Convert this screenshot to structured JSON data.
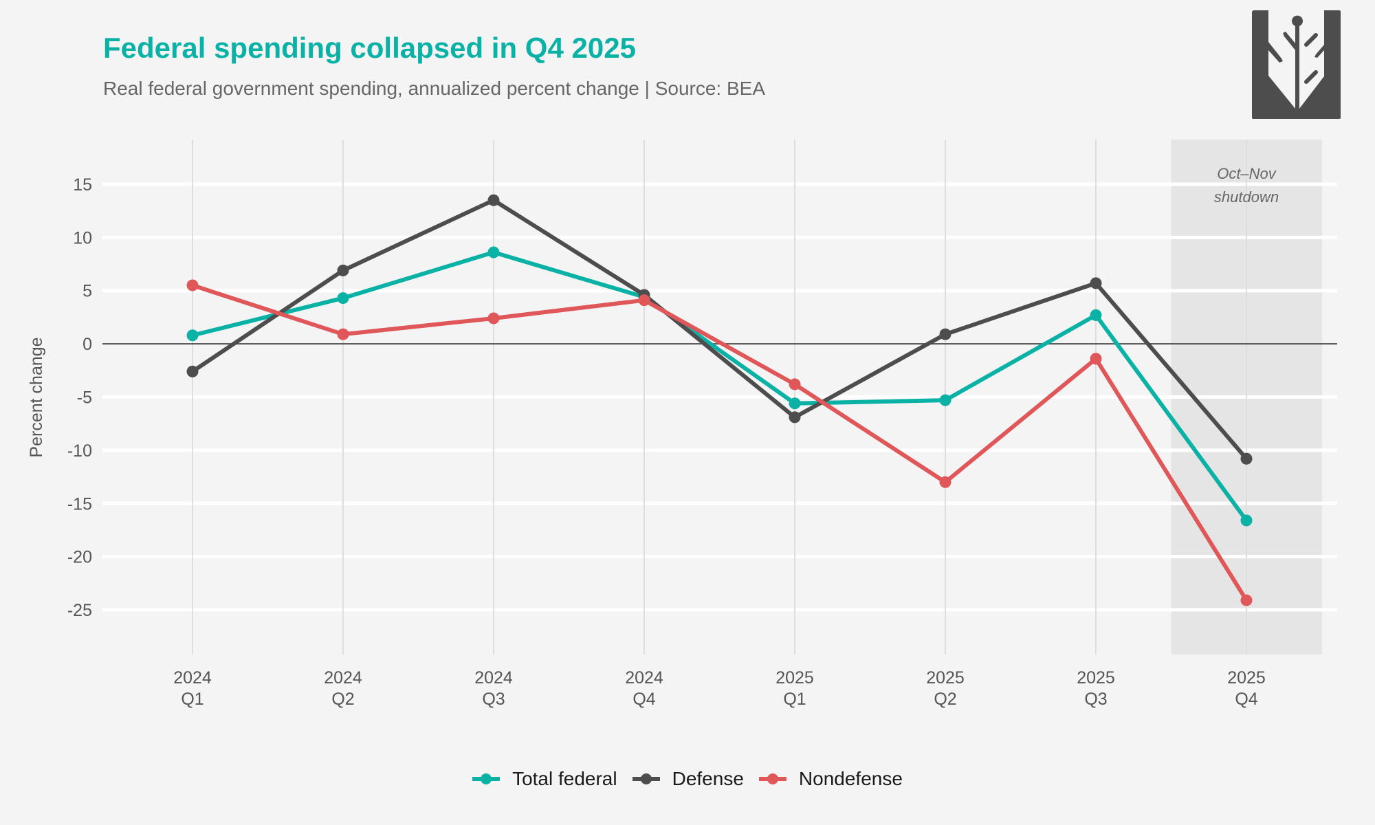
{
  "header": {
    "title": "Federal spending collapsed in Q4 2025",
    "subtitle": "Real federal government spending, annualized percent change | Source: BEA",
    "logo_icon": "wheat-shield-logo-icon"
  },
  "colors": {
    "total": "#0AB1A5",
    "defense": "#4D4D4D",
    "nondefense": "#E05759",
    "title": "#0AB1A5",
    "shade": "#E5E5E5"
  },
  "chart_data": {
    "type": "line",
    "title": "Federal spending collapsed in Q4 2025",
    "subtitle": "Real federal government spending, annualized percent change | Source: BEA",
    "xlabel": "",
    "ylabel": "Percent change",
    "categories": [
      {
        "year": "2024",
        "quarter": "Q1"
      },
      {
        "year": "2024",
        "quarter": "Q2"
      },
      {
        "year": "2024",
        "quarter": "Q3"
      },
      {
        "year": "2024",
        "quarter": "Q4"
      },
      {
        "year": "2025",
        "quarter": "Q1"
      },
      {
        "year": "2025",
        "quarter": "Q2"
      },
      {
        "year": "2025",
        "quarter": "Q3"
      },
      {
        "year": "2025",
        "quarter": "Q4"
      }
    ],
    "series": [
      {
        "key": "total",
        "name": "Total federal",
        "values": [
          0.8,
          4.3,
          8.6,
          4.4,
          -5.6,
          -5.3,
          2.7,
          -16.6
        ]
      },
      {
        "key": "defense",
        "name": "Defense",
        "values": [
          -2.6,
          6.9,
          13.5,
          4.6,
          -6.9,
          0.9,
          5.7,
          -10.8
        ]
      },
      {
        "key": "nondefense",
        "name": "Nondefense",
        "values": [
          5.5,
          0.9,
          2.4,
          4.1,
          -3.8,
          -13.0,
          -1.4,
          -24.1
        ]
      }
    ],
    "ylim": [
      -29.2,
      19.2
    ],
    "yticks": [
      15,
      10,
      5,
      0,
      -5,
      -10,
      -15,
      -20,
      -25
    ],
    "zero_line": true,
    "grid": true,
    "shaded_period": {
      "from_index": 7,
      "label_line1": "Oct–Nov",
      "label_line2": "shutdown"
    },
    "legend_position": "bottom"
  }
}
